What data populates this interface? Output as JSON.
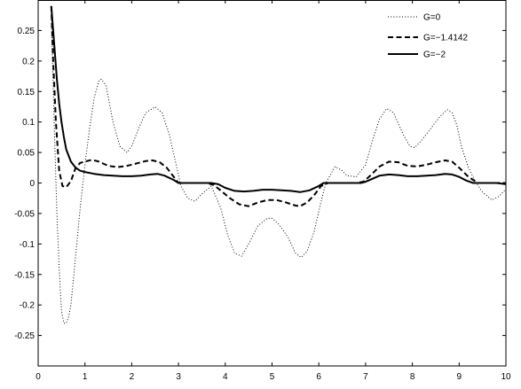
{
  "chart_data": {
    "type": "line",
    "title": "",
    "xlabel": "",
    "ylabel": "",
    "xlim": [
      0,
      10
    ],
    "ylim": [
      -0.3,
      0.3
    ],
    "grid": false,
    "legend_position": "top-right",
    "x_ticks": [
      "0",
      "1",
      "2",
      "3",
      "4",
      "5",
      "6",
      "7",
      "8",
      "9",
      "10"
    ],
    "y_ticks": [
      "-0.25",
      "-0.2",
      "-0.15",
      "-0.1",
      "-0.05",
      "0",
      "0.05",
      "0.1",
      "0.15",
      "0.2",
      "0.25"
    ],
    "series": [
      {
        "name": "G=0",
        "style": "dotted",
        "color": "#000000",
        "x": [
          0.28,
          0.3,
          0.35,
          0.4,
          0.45,
          0.5,
          0.55,
          0.6,
          0.65,
          0.7,
          0.8,
          0.9,
          1.0,
          1.1,
          1.2,
          1.3,
          1.35,
          1.45,
          1.6,
          1.75,
          1.9,
          2.0,
          2.15,
          2.3,
          2.5,
          2.65,
          2.8,
          2.95,
          3.05,
          3.2,
          3.35,
          3.5,
          3.7,
          3.9,
          4.05,
          4.2,
          4.35,
          4.5,
          4.7,
          4.9,
          5.0,
          5.15,
          5.35,
          5.5,
          5.62,
          5.75,
          5.9,
          6.05,
          6.15,
          6.35,
          6.5,
          6.6,
          6.8,
          7.0,
          7.15,
          7.3,
          7.45,
          7.6,
          7.8,
          7.95,
          8.05,
          8.2,
          8.4,
          8.6,
          8.75,
          8.85,
          8.95,
          9.05,
          9.2,
          9.35,
          9.5,
          9.7,
          9.85,
          10.0
        ],
        "y": [
          0.29,
          0.22,
          0.08,
          -0.05,
          -0.14,
          -0.21,
          -0.23,
          -0.23,
          -0.22,
          -0.2,
          -0.12,
          -0.04,
          0.03,
          0.09,
          0.14,
          0.168,
          0.17,
          0.16,
          0.1,
          0.06,
          0.05,
          0.06,
          0.09,
          0.115,
          0.125,
          0.115,
          0.08,
          0.03,
          -0.005,
          -0.025,
          -0.03,
          -0.018,
          -0.005,
          -0.04,
          -0.085,
          -0.115,
          -0.12,
          -0.1,
          -0.07,
          -0.058,
          -0.058,
          -0.068,
          -0.09,
          -0.115,
          -0.122,
          -0.112,
          -0.08,
          -0.03,
          0.0,
          0.027,
          0.02,
          0.012,
          0.01,
          0.03,
          0.07,
          0.105,
          0.122,
          0.115,
          0.08,
          0.06,
          0.058,
          0.07,
          0.09,
          0.11,
          0.12,
          0.115,
          0.095,
          0.06,
          0.025,
          0.002,
          -0.015,
          -0.028,
          -0.022,
          -0.01
        ]
      },
      {
        "name": "G=−1.4142",
        "style": "dashed",
        "color": "#000000",
        "x": [
          0.28,
          0.32,
          0.38,
          0.45,
          0.52,
          0.6,
          0.7,
          0.8,
          0.9,
          1.0,
          1.15,
          1.3,
          1.5,
          1.7,
          1.9,
          2.1,
          2.3,
          2.45,
          2.6,
          2.75,
          2.9,
          3.0,
          3.2,
          3.4,
          3.6,
          3.75,
          3.9,
          4.1,
          4.3,
          4.5,
          4.7,
          4.9,
          5.1,
          5.3,
          5.5,
          5.6,
          5.75,
          5.9,
          6.05,
          6.2,
          6.4,
          6.6,
          6.8,
          6.95,
          7.1,
          7.3,
          7.5,
          7.7,
          7.9,
          8.1,
          8.3,
          8.5,
          8.7,
          8.85,
          9.0,
          9.2,
          9.4,
          9.6,
          9.8,
          10.0
        ],
        "y": [
          0.29,
          0.2,
          0.1,
          0.02,
          -0.005,
          -0.007,
          0.003,
          0.025,
          0.033,
          0.035,
          0.038,
          0.035,
          0.028,
          0.026,
          0.028,
          0.032,
          0.036,
          0.037,
          0.034,
          0.025,
          0.01,
          0.0,
          0.0,
          0.0,
          0.0,
          -0.003,
          -0.012,
          -0.025,
          -0.035,
          -0.038,
          -0.032,
          -0.028,
          -0.028,
          -0.032,
          -0.037,
          -0.038,
          -0.032,
          -0.02,
          -0.005,
          0.0,
          0.0,
          0.0,
          0.0,
          0.002,
          0.012,
          0.027,
          0.035,
          0.034,
          0.028,
          0.027,
          0.03,
          0.034,
          0.037,
          0.035,
          0.025,
          0.01,
          0.0,
          0.0,
          0.0,
          0.0
        ]
      },
      {
        "name": "G=−2",
        "style": "solid",
        "color": "#000000",
        "x": [
          0.28,
          0.32,
          0.36,
          0.4,
          0.45,
          0.5,
          0.55,
          0.6,
          0.7,
          0.8,
          0.9,
          1.0,
          1.2,
          1.4,
          1.6,
          1.8,
          2.0,
          2.2,
          2.4,
          2.55,
          2.7,
          2.9,
          3.0,
          3.2,
          3.5,
          3.7,
          3.85,
          4.0,
          4.2,
          4.4,
          4.6,
          4.8,
          5.0,
          5.2,
          5.4,
          5.6,
          5.8,
          6.0,
          6.1,
          6.4,
          6.7,
          6.9,
          7.0,
          7.15,
          7.3,
          7.5,
          7.7,
          7.9,
          8.1,
          8.3,
          8.5,
          8.7,
          8.85,
          9.0,
          9.15,
          9.3,
          9.6,
          9.8,
          10.0
        ],
        "y": [
          0.29,
          0.25,
          0.21,
          0.17,
          0.13,
          0.1,
          0.075,
          0.055,
          0.035,
          0.025,
          0.02,
          0.018,
          0.015,
          0.013,
          0.012,
          0.011,
          0.011,
          0.012,
          0.014,
          0.015,
          0.012,
          0.005,
          0.0,
          0.0,
          0.0,
          0.0,
          -0.002,
          -0.008,
          -0.013,
          -0.014,
          -0.013,
          -0.011,
          -0.011,
          -0.012,
          -0.013,
          -0.015,
          -0.012,
          -0.005,
          0.0,
          0.0,
          0.0,
          0.0,
          0.002,
          0.007,
          0.012,
          0.014,
          0.013,
          0.011,
          0.011,
          0.012,
          0.013,
          0.015,
          0.014,
          0.01,
          0.004,
          0.0,
          0.0,
          0.0,
          -0.002
        ]
      }
    ]
  }
}
